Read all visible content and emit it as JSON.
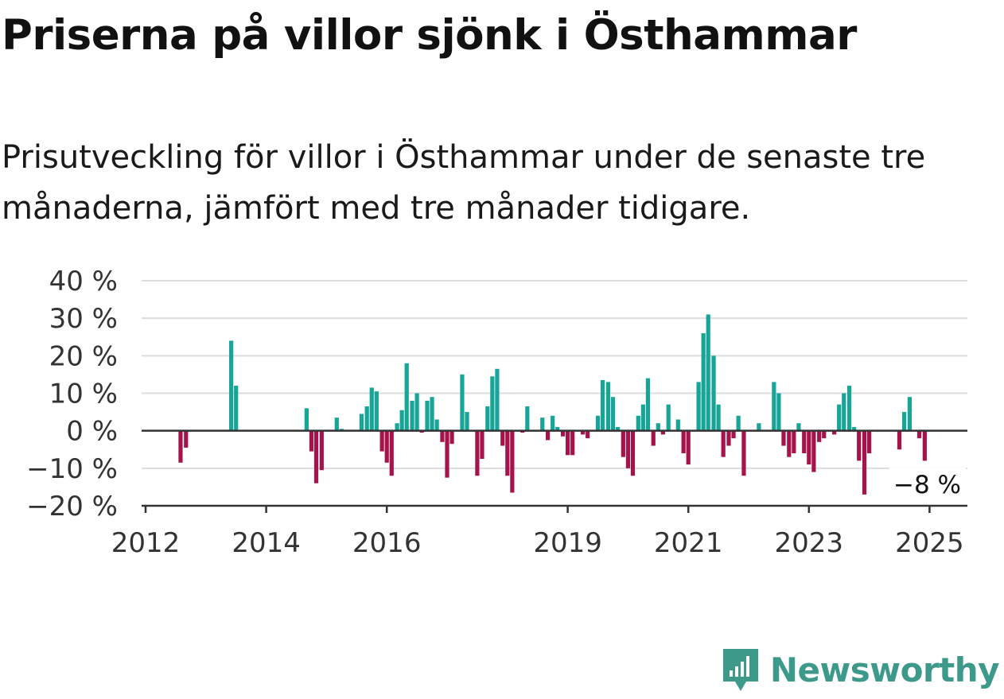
{
  "title": "Priserna på villor sjönk i Östhammar",
  "subtitle": "Prisutveckling för villor i Östhammar under de senaste tre månaderna, jämfört med tre månader tidigare.",
  "brand": "Newsworthy",
  "colors": {
    "positive": "#17a598",
    "negative": "#a5134a",
    "grid": "#dddddd",
    "axis": "#333333",
    "brand": "#3d9a8b"
  },
  "chart_data": {
    "type": "bar",
    "x_unit": "year-fraction",
    "ylim": [
      -20,
      40
    ],
    "y_ticks": [
      {
        "value": 40,
        "label": "40 %"
      },
      {
        "value": 30,
        "label": "30 %"
      },
      {
        "value": 20,
        "label": "20 %"
      },
      {
        "value": 10,
        "label": "10 %"
      },
      {
        "value": 0,
        "label": "0 %"
      },
      {
        "value": -10,
        "label": "−10 %"
      },
      {
        "value": -20,
        "label": "−20 %"
      }
    ],
    "x_ticks": [
      {
        "value": 2012,
        "label": "2012"
      },
      {
        "value": 2014,
        "label": "2014"
      },
      {
        "value": 2016,
        "label": "2016"
      },
      {
        "value": 2019,
        "label": "2019"
      },
      {
        "value": 2021,
        "label": "2021"
      },
      {
        "value": 2023,
        "label": "2023"
      },
      {
        "value": 2025,
        "label": "2025"
      }
    ],
    "xlim": [
      2012,
      2025.67
    ],
    "annotation": {
      "label": "−8 %",
      "x": 2025,
      "y": -8
    },
    "series": [
      {
        "values": [
          [
            2012.58,
            -8.5
          ],
          [
            2012.67,
            -4.5
          ],
          [
            2013.42,
            24
          ],
          [
            2013.5,
            12
          ],
          [
            2014.67,
            6
          ],
          [
            2014.75,
            -5.5
          ],
          [
            2014.83,
            -14
          ],
          [
            2014.92,
            -10.5
          ],
          [
            2015.17,
            3.5
          ],
          [
            2015.25,
            0.5
          ],
          [
            2015.58,
            4.5
          ],
          [
            2015.67,
            6.5
          ],
          [
            2015.75,
            11.5
          ],
          [
            2015.83,
            10.5
          ],
          [
            2015.92,
            -5.5
          ],
          [
            2016.0,
            -8.5
          ],
          [
            2016.08,
            -12
          ],
          [
            2016.17,
            2
          ],
          [
            2016.25,
            5.5
          ],
          [
            2016.33,
            18
          ],
          [
            2016.42,
            8
          ],
          [
            2016.5,
            10
          ],
          [
            2016.58,
            -0.5
          ],
          [
            2016.67,
            8
          ],
          [
            2016.75,
            9
          ],
          [
            2016.83,
            3
          ],
          [
            2016.92,
            -3
          ],
          [
            2017.0,
            -12.5
          ],
          [
            2017.08,
            -3.5
          ],
          [
            2017.25,
            15
          ],
          [
            2017.33,
            5
          ],
          [
            2017.5,
            -12
          ],
          [
            2017.58,
            -7.5
          ],
          [
            2017.67,
            6.5
          ],
          [
            2017.75,
            14.5
          ],
          [
            2017.83,
            16.5
          ],
          [
            2017.92,
            -4
          ],
          [
            2018.0,
            -12
          ],
          [
            2018.08,
            -16.5
          ],
          [
            2018.25,
            -0.5
          ],
          [
            2018.33,
            6.5
          ],
          [
            2018.58,
            3.5
          ],
          [
            2018.67,
            -2.5
          ],
          [
            2018.75,
            4
          ],
          [
            2018.83,
            1
          ],
          [
            2018.92,
            -1.5
          ],
          [
            2019.0,
            -6.5
          ],
          [
            2019.08,
            -6.5
          ],
          [
            2019.25,
            -1
          ],
          [
            2019.33,
            -2
          ],
          [
            2019.5,
            4
          ],
          [
            2019.58,
            13.5
          ],
          [
            2019.67,
            13
          ],
          [
            2019.75,
            9
          ],
          [
            2019.83,
            1
          ],
          [
            2019.92,
            -7
          ],
          [
            2020.0,
            -10
          ],
          [
            2020.08,
            -12
          ],
          [
            2020.17,
            4
          ],
          [
            2020.25,
            7
          ],
          [
            2020.33,
            14
          ],
          [
            2020.42,
            -4
          ],
          [
            2020.5,
            2
          ],
          [
            2020.58,
            -1
          ],
          [
            2020.67,
            7
          ],
          [
            2020.83,
            3
          ],
          [
            2020.92,
            -6
          ],
          [
            2021.0,
            -9
          ],
          [
            2021.17,
            13
          ],
          [
            2021.25,
            26
          ],
          [
            2021.33,
            31
          ],
          [
            2021.42,
            20
          ],
          [
            2021.5,
            7
          ],
          [
            2021.58,
            -7
          ],
          [
            2021.67,
            -4
          ],
          [
            2021.75,
            -2
          ],
          [
            2021.83,
            4
          ],
          [
            2021.92,
            -12
          ],
          [
            2022.17,
            2
          ],
          [
            2022.42,
            13
          ],
          [
            2022.5,
            10
          ],
          [
            2022.58,
            -4
          ],
          [
            2022.67,
            -7
          ],
          [
            2022.75,
            -6
          ],
          [
            2022.83,
            2
          ],
          [
            2022.92,
            -6
          ],
          [
            2023.0,
            -9
          ],
          [
            2023.08,
            -11
          ],
          [
            2023.17,
            -3
          ],
          [
            2023.25,
            -2
          ],
          [
            2023.42,
            -1
          ],
          [
            2023.5,
            7
          ],
          [
            2023.58,
            10
          ],
          [
            2023.67,
            12
          ],
          [
            2023.75,
            1
          ],
          [
            2023.83,
            -8
          ],
          [
            2023.92,
            -17
          ],
          [
            2024.0,
            -6
          ],
          [
            2024.5,
            -5
          ],
          [
            2024.58,
            5
          ],
          [
            2024.67,
            9
          ],
          [
            2024.83,
            -2
          ],
          [
            2024.92,
            -8
          ]
        ]
      }
    ]
  }
}
